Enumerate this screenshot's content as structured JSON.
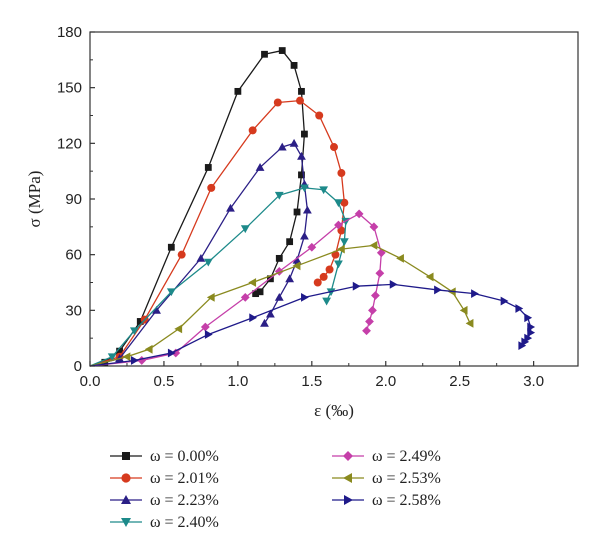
{
  "chart_data": {
    "type": "line",
    "xlabel": "ε (‰)",
    "ylabel": "σ (MPa)",
    "xlim": [
      0,
      3.3
    ],
    "ylim": [
      0,
      180
    ],
    "xticks": [
      "0.0",
      "0.5",
      "1.0",
      "1.5",
      "2.0",
      "2.5",
      "3.0"
    ],
    "yticks": [
      "0",
      "30",
      "60",
      "90",
      "120",
      "150",
      "180"
    ],
    "grid": false,
    "legend_position": "bottom",
    "series": [
      {
        "name": "ω = 0.00%",
        "color": "#1a1a1a",
        "marker": "square",
        "x": [
          0.0,
          0.1,
          0.2,
          0.34,
          0.55,
          0.8,
          1.0,
          1.18,
          1.3,
          1.38,
          1.43,
          1.45,
          1.43,
          1.4,
          1.35,
          1.28,
          1.22,
          1.15,
          1.12
        ],
        "y": [
          0,
          2,
          8,
          24,
          64,
          107,
          148,
          168,
          170,
          162,
          148,
          125,
          103,
          83,
          67,
          58,
          47,
          40,
          39
        ]
      },
      {
        "name": "ω = 2.01%",
        "color": "#d63a1e",
        "marker": "circle",
        "x": [
          0.0,
          0.2,
          0.37,
          0.62,
          0.82,
          1.1,
          1.27,
          1.42,
          1.55,
          1.65,
          1.7,
          1.72,
          1.7,
          1.66,
          1.62,
          1.58,
          1.54
        ],
        "y": [
          0,
          5,
          25,
          60,
          96,
          127,
          142,
          143,
          135,
          118,
          104,
          88,
          73,
          60,
          52,
          48,
          45
        ]
      },
      {
        "name": "ω = 2.23%",
        "color": "#2b1f86",
        "marker": "triangle-up",
        "x": [
          0.0,
          0.2,
          0.45,
          0.75,
          0.95,
          1.15,
          1.3,
          1.38,
          1.43,
          1.45,
          1.47,
          1.45,
          1.4,
          1.35,
          1.28,
          1.22,
          1.18
        ],
        "y": [
          0,
          4,
          30,
          58,
          85,
          107,
          118,
          120,
          113,
          98,
          84,
          70,
          57,
          47,
          37,
          28,
          23
        ]
      },
      {
        "name": "ω = 2.40%",
        "color": "#1d8a8a",
        "marker": "triangle-down",
        "x": [
          0.0,
          0.15,
          0.3,
          0.55,
          0.8,
          1.05,
          1.28,
          1.45,
          1.58,
          1.68,
          1.73,
          1.72,
          1.68,
          1.63,
          1.6
        ],
        "y": [
          0,
          5,
          19,
          40,
          56,
          74,
          92,
          96,
          95,
          88,
          78,
          67,
          55,
          40,
          35
        ]
      },
      {
        "name": "ω = 2.49%",
        "color": "#c53fa9",
        "marker": "diamond",
        "x": [
          0.0,
          0.35,
          0.58,
          0.78,
          1.05,
          1.28,
          1.5,
          1.68,
          1.82,
          1.92,
          1.97,
          1.96,
          1.93,
          1.91,
          1.89,
          1.87
        ],
        "y": [
          0,
          3,
          7,
          21,
          37,
          51,
          64,
          76,
          82,
          75,
          61,
          50,
          38,
          30,
          24,
          19
        ]
      },
      {
        "name": "ω = 2.53%",
        "color": "#8a8a1f",
        "marker": "triangle-left",
        "x": [
          0.0,
          0.25,
          0.4,
          0.6,
          0.82,
          1.1,
          1.4,
          1.7,
          1.92,
          2.1,
          2.3,
          2.45,
          2.53,
          2.57
        ],
        "y": [
          0,
          5,
          9,
          20,
          37,
          45,
          54,
          63,
          65,
          58,
          48,
          40,
          30,
          23
        ]
      },
      {
        "name": "ω = 2.58%",
        "color": "#1f1a8a",
        "marker": "triangle-right",
        "x": [
          0.0,
          0.3,
          0.55,
          0.8,
          1.1,
          1.45,
          1.8,
          2.05,
          2.35,
          2.6,
          2.8,
          2.9,
          2.96,
          2.98,
          2.98,
          2.96,
          2.94,
          2.92
        ],
        "y": [
          0,
          3,
          7,
          17,
          26,
          37,
          43,
          44,
          41,
          39,
          35,
          31,
          26,
          21,
          18,
          15,
          13,
          11
        ]
      }
    ]
  }
}
